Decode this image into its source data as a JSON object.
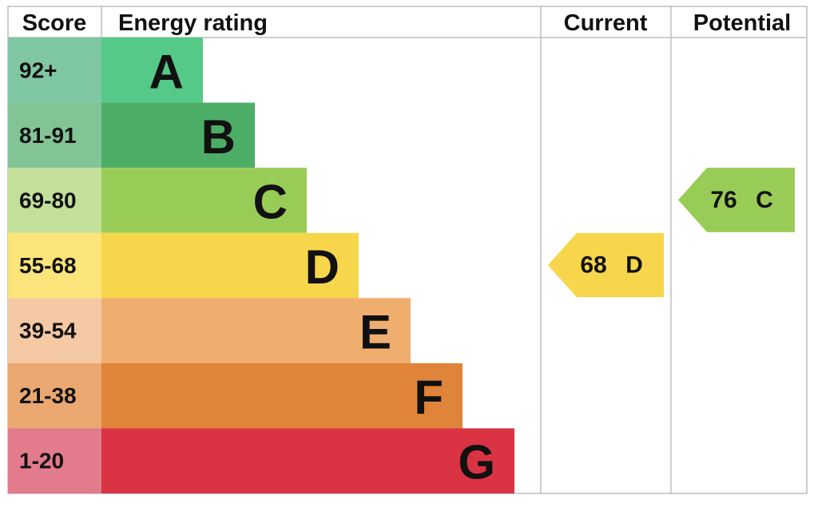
{
  "headers": [
    "Score",
    "Energy rating",
    "Current",
    "Potential"
  ],
  "bands": [
    {
      "score": "92+",
      "letter": "A",
      "color": "#55c987",
      "score_color": "#7fc7a2"
    },
    {
      "score": "81-91",
      "letter": "B",
      "color": "#4cae66",
      "score_color": "#83c496"
    },
    {
      "score": "69-80",
      "letter": "C",
      "color": "#99cc56",
      "score_color": "#c3e09b"
    },
    {
      "score": "55-68",
      "letter": "D",
      "color": "#f7d64b",
      "score_color": "#fbe47a"
    },
    {
      "score": "39-54",
      "letter": "E",
      "color": "#f0ae6e",
      "score_color": "#f5c9a4"
    },
    {
      "score": "21-38",
      "letter": "F",
      "color": "#e0843a",
      "score_color": "#eaa870"
    },
    {
      "score": "1-20",
      "letter": "G",
      "color": "#d93344",
      "score_color": "#e27b8b"
    }
  ],
  "current": {
    "value": 68,
    "letter": "D",
    "color": "#f7d64b"
  },
  "potential": {
    "value": 76,
    "letter": "C",
    "color": "#99cc56"
  }
}
